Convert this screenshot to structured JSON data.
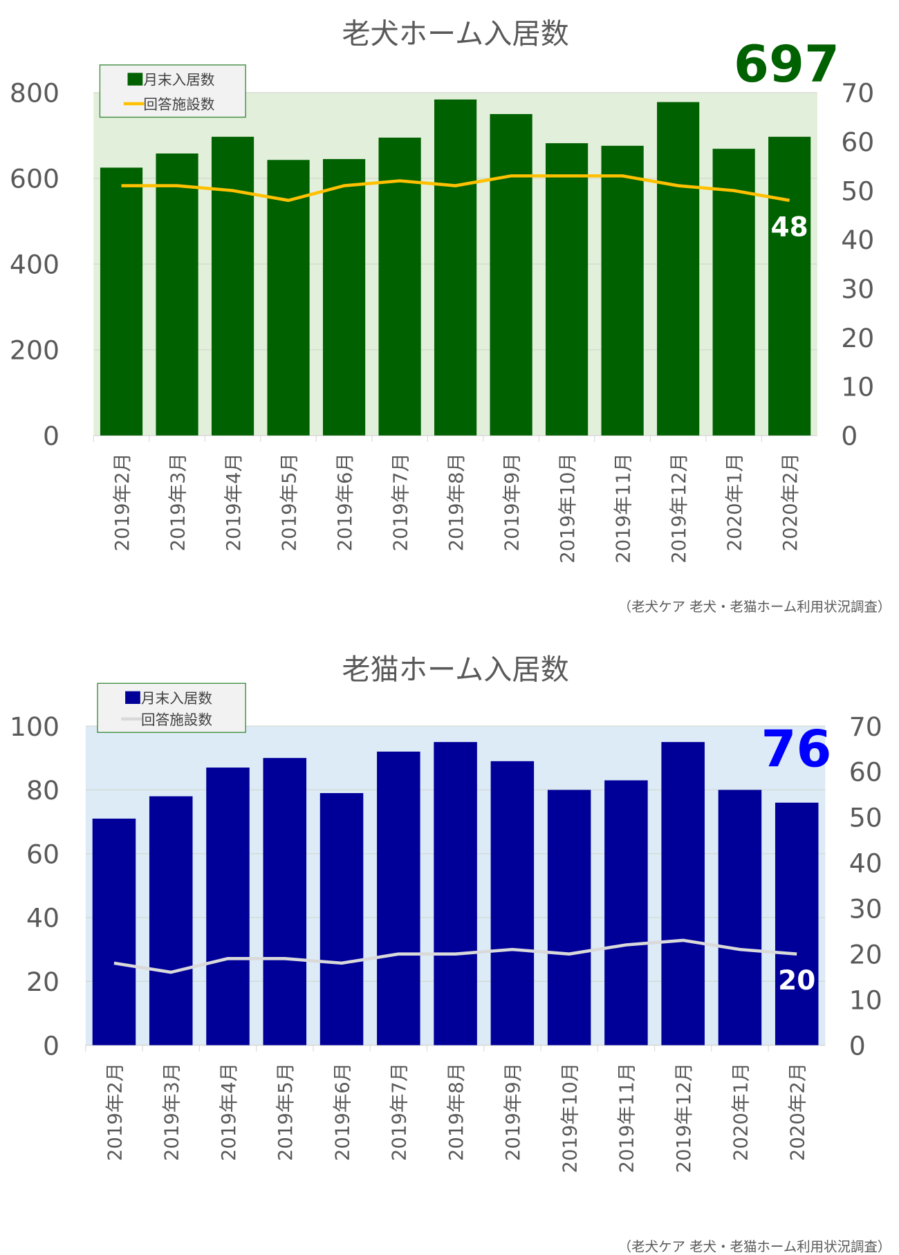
{
  "chart_data": [
    {
      "type": "bar+line",
      "title": "老犬ホーム入居数",
      "categories": [
        "2019年2月",
        "2019年3月",
        "2019年4月",
        "2019年5月",
        "2019年6月",
        "2019年7月",
        "2019年8月",
        "2019年9月",
        "2019年10月",
        "2019年11月",
        "2019年12月",
        "2020年1月",
        "2020年2月"
      ],
      "series": [
        {
          "name": "月末入居数",
          "type": "bar",
          "axis": "left",
          "color": "#006100",
          "values": [
            625,
            658,
            697,
            643,
            645,
            695,
            784,
            750,
            682,
            676,
            778,
            669,
            697
          ]
        },
        {
          "name": "回答施設数",
          "type": "line",
          "axis": "right",
          "color": "#FFC000",
          "values": [
            51,
            51,
            50,
            48,
            51,
            52,
            51,
            53,
            53,
            53,
            51,
            50,
            48
          ]
        }
      ],
      "ylim_left": [
        0,
        800
      ],
      "yticks_left": [
        0,
        200,
        400,
        600,
        800
      ],
      "ylim_right": [
        0,
        70
      ],
      "yticks_right": [
        0,
        10,
        20,
        30,
        40,
        50,
        60,
        70
      ],
      "plot_bg": "#E2EFDA",
      "grid": true,
      "legend": "top-left",
      "highlight_value": "697",
      "highlight_color": "#006100",
      "line_end_label": "48",
      "source": "（老犬ケア 老犬・老猫ホーム利用状況調査）"
    },
    {
      "type": "bar+line",
      "title": "老猫ホーム入居数",
      "categories": [
        "2019年2月",
        "2019年3月",
        "2019年4月",
        "2019年5月",
        "2019年6月",
        "2019年7月",
        "2019年8月",
        "2019年9月",
        "2019年10月",
        "2019年11月",
        "2019年12月",
        "2020年1月",
        "2020年2月"
      ],
      "series": [
        {
          "name": "月末入居数",
          "type": "bar",
          "axis": "left",
          "color": "#000099",
          "values": [
            71,
            78,
            87,
            90,
            79,
            92,
            95,
            89,
            80,
            83,
            95,
            80,
            76
          ]
        },
        {
          "name": "回答施設数",
          "type": "line",
          "axis": "right",
          "color": "#D9D9D9",
          "values": [
            18,
            16,
            19,
            19,
            18,
            20,
            20,
            21,
            20,
            22,
            23,
            21,
            20
          ]
        }
      ],
      "ylim_left": [
        0,
        100
      ],
      "yticks_left": [
        0,
        20,
        40,
        60,
        80,
        100
      ],
      "ylim_right": [
        0,
        70
      ],
      "yticks_right": [
        0,
        10,
        20,
        30,
        40,
        50,
        60,
        70
      ],
      "plot_bg": "#DDEBF7",
      "grid": true,
      "legend": "top-left",
      "highlight_value": "76",
      "highlight_color": "#0000FF",
      "line_end_label": "20",
      "source": "（老犬ケア 老犬・老猫ホーム利用状況調査）"
    }
  ]
}
